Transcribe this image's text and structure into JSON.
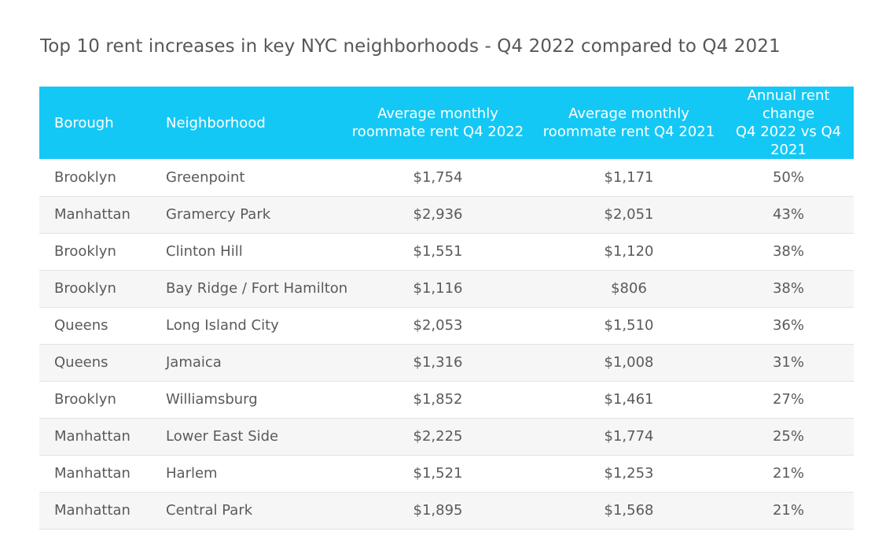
{
  "chart_data": {
    "type": "table",
    "title": "Top 10 rent increases in key NYC neighborhoods - Q4 2022 compared to Q4 2021",
    "columns": [
      "Borough",
      "Neighborhood",
      "Average monthly roommate rent Q4 2022",
      "Average monthly roommate rent Q4 2021",
      "Annual rent change Q4 2022 vs Q4 2021"
    ],
    "header_lines": [
      [
        "Borough"
      ],
      [
        "Neighborhood"
      ],
      [
        "Average monthly",
        "roommate rent Q4 2022"
      ],
      [
        "Average monthly",
        "roommate rent Q4 2021"
      ],
      [
        "Annual rent change",
        "Q4 2022 vs Q4 2021"
      ]
    ],
    "rows": [
      [
        "Brooklyn",
        "Greenpoint",
        "$1,754",
        "$1,171",
        "50%"
      ],
      [
        "Manhattan",
        "Gramercy Park",
        "$2,936",
        "$2,051",
        "43%"
      ],
      [
        "Brooklyn",
        "Clinton Hill",
        "$1,551",
        "$1,120",
        "38%"
      ],
      [
        "Brooklyn",
        "Bay Ridge / Fort Hamilton",
        "$1,116",
        "$806",
        "38%"
      ],
      [
        "Queens",
        "Long Island City",
        "$2,053",
        "$1,510",
        "36%"
      ],
      [
        "Queens",
        "Jamaica",
        "$1,316",
        "$1,008",
        "31%"
      ],
      [
        "Brooklyn",
        "Williamsburg",
        "$1,852",
        "$1,461",
        "27%"
      ],
      [
        "Manhattan",
        "Lower East Side",
        "$2,225",
        "$1,774",
        "25%"
      ],
      [
        "Manhattan",
        "Harlem",
        "$1,521",
        "$1,253",
        "21%"
      ],
      [
        "Manhattan",
        "Central Park",
        "$1,895",
        "$1,568",
        "21%"
      ]
    ],
    "header_color": "#14c8f5",
    "stripe_color": "#f6f6f6"
  }
}
